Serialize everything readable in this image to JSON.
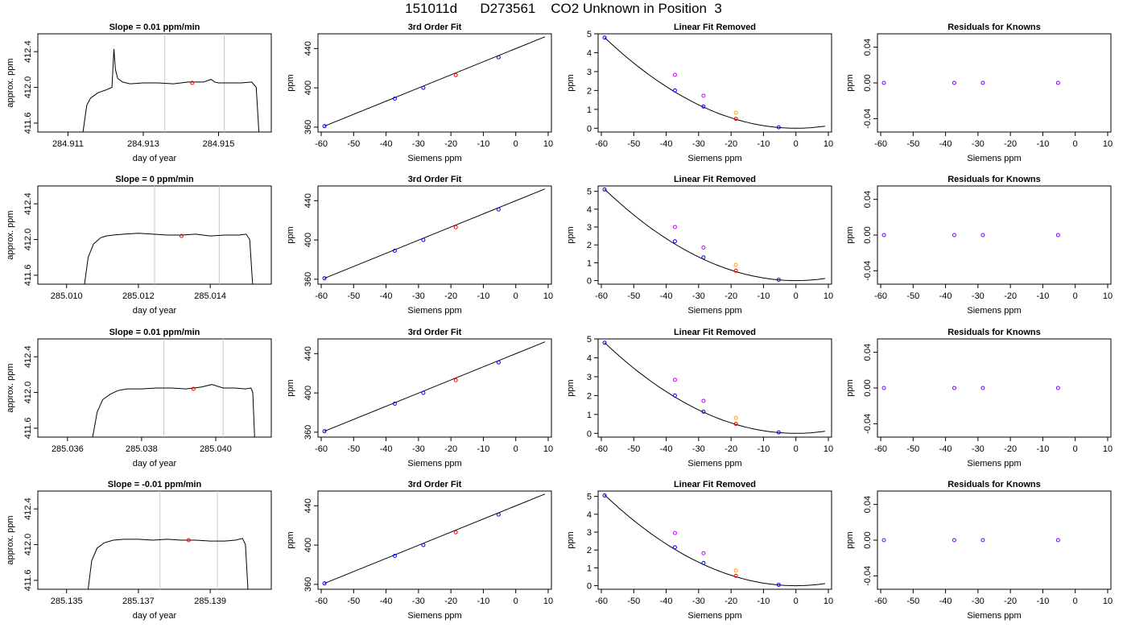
{
  "figure_title": "151011d      D273561    CO2 Unknown in Position  3",
  "colors": {
    "line": "#000000",
    "blue": "#0000ff",
    "red": "#ff0000",
    "magenta": "#cc00ff",
    "orange": "#ffa500",
    "purple": "#6f00ff",
    "gridline": "#c8c8c8"
  },
  "chart_data": [
    {
      "type": "line",
      "row": 0,
      "col": 0,
      "title": "Slope =  0.01  ppm/min",
      "xlabel": "day of year",
      "ylabel": "approx. ppm",
      "xlim": [
        284.9102,
        284.9164
      ],
      "ylim": [
        411.5,
        412.6
      ],
      "xticks": [
        "284.911",
        "284.913",
        "284.915"
      ],
      "yticks": [
        "411.6",
        "412.0",
        "412.4"
      ],
      "vlines": [
        284.91357,
        284.91515
      ],
      "marker": [
        284.9143,
        412.05
      ],
      "x": [
        284.9114,
        284.9115,
        284.9116,
        284.9118,
        284.912,
        284.91217,
        284.91222,
        284.91226,
        284.91232,
        284.91245,
        284.91265,
        284.913,
        284.9134,
        284.9138,
        284.9142,
        284.9146,
        284.9148,
        284.9149,
        284.915,
        284.9153,
        284.9156,
        284.91588,
        284.916,
        284.91607
      ],
      "y": [
        411.5,
        411.8,
        411.88,
        411.94,
        411.97,
        412.0,
        412.43,
        412.2,
        412.1,
        412.06,
        412.04,
        412.05,
        412.05,
        412.04,
        412.06,
        412.06,
        412.09,
        412.06,
        412.05,
        412.05,
        412.05,
        412.06,
        412.0,
        411.5
      ]
    },
    {
      "type": "line",
      "row": 0,
      "col": 1,
      "title": "3rd Order Fit",
      "xlabel": "Siemens ppm",
      "ylabel": "ppm",
      "xlim": [
        -61,
        11
      ],
      "ylim": [
        355,
        455
      ],
      "xticks": [
        "-60",
        "-50",
        "-40",
        "-30",
        "-20",
        "-10",
        "0",
        "10"
      ],
      "yticks": [
        "360",
        "400",
        "440"
      ],
      "fit": {
        "x": [
          -59,
          9
        ],
        "y": [
          361,
          452
        ]
      },
      "points": [
        {
          "x": -59,
          "y": 361,
          "color": "blue"
        },
        {
          "x": -37.3,
          "y": 389,
          "color": "blue"
        },
        {
          "x": -28.5,
          "y": 400,
          "color": "blue"
        },
        {
          "x": -18.5,
          "y": 413,
          "color": "red"
        },
        {
          "x": -5.3,
          "y": 431,
          "color": "blue"
        }
      ]
    },
    {
      "type": "line",
      "row": 0,
      "col": 2,
      "title": "Linear Fit Removed",
      "xlabel": "Siemens ppm",
      "ylabel": "ppm",
      "xlim": [
        -61,
        11
      ],
      "ylim": [
        -0.2,
        5.0
      ],
      "xticks": [
        "-60",
        "-50",
        "-40",
        "-30",
        "-20",
        "-10",
        "0",
        "10"
      ],
      "yticks": [
        "0",
        "1",
        "2",
        "3",
        "4",
        "5"
      ],
      "curve": {
        "a": 0.00138,
        "c": 0.0,
        "x0": -59,
        "x1": 9
      },
      "points": [
        {
          "x": -59,
          "y": 4.8,
          "color": "blue"
        },
        {
          "x": -37.3,
          "y": 2.0,
          "color": "blue"
        },
        {
          "x": -28.5,
          "y": 1.15,
          "color": "blue"
        },
        {
          "x": -18.5,
          "y": 0.5,
          "color": "red"
        },
        {
          "x": -5.3,
          "y": 0.05,
          "color": "blue"
        },
        {
          "x": -37.3,
          "y": 2.83,
          "color": "magenta"
        },
        {
          "x": -28.5,
          "y": 1.72,
          "color": "magenta"
        },
        {
          "x": -18.5,
          "y": 0.82,
          "color": "orange"
        }
      ]
    },
    {
      "type": "scatter",
      "row": 0,
      "col": 3,
      "title": "Residuals for Knowns",
      "xlabel": "Siemens ppm",
      "ylabel": "ppm",
      "xlim": [
        -61,
        11
      ],
      "ylim": [
        -0.055,
        0.055
      ],
      "xticks": [
        "-60",
        "-50",
        "-40",
        "-30",
        "-20",
        "-10",
        "0",
        "10"
      ],
      "yticks": [
        "-0.04",
        "0.00",
        "0.04"
      ],
      "points": [
        {
          "x": -59,
          "y": 0.0,
          "color": "purple"
        },
        {
          "x": -37.3,
          "y": 0.0,
          "color": "purple"
        },
        {
          "x": -28.5,
          "y": 0.0,
          "color": "purple"
        },
        {
          "x": -5.3,
          "y": 0.0,
          "color": "purple"
        }
      ]
    },
    {
      "type": "line",
      "row": 1,
      "col": 0,
      "title": "Slope =  0  ppm/min",
      "xlabel": "day of year",
      "ylabel": "approx. ppm",
      "xlim": [
        285.0092,
        285.0157
      ],
      "ylim": [
        411.5,
        412.6
      ],
      "xticks": [
        "285.010",
        "285.012",
        "285.014"
      ],
      "yticks": [
        "411.6",
        "412.0",
        "412.4"
      ],
      "vlines": [
        285.01245,
        285.01425
      ],
      "marker": [
        285.0132,
        412.04
      ],
      "x": [
        285.0105,
        285.0106,
        285.01075,
        285.01095,
        285.0111,
        285.0113,
        285.0116,
        285.012,
        285.0124,
        285.0128,
        285.0132,
        285.0136,
        285.014,
        285.0144,
        285.0148,
        285.015,
        285.0151,
        285.01518
      ],
      "y": [
        411.5,
        411.8,
        411.95,
        412.02,
        412.04,
        412.05,
        412.06,
        412.07,
        412.06,
        412.05,
        412.05,
        412.06,
        412.04,
        412.05,
        412.05,
        412.06,
        412.0,
        411.5
      ]
    },
    {
      "type": "line",
      "row": 1,
      "col": 1,
      "title": "3rd Order Fit",
      "xlabel": "Siemens ppm",
      "ylabel": "ppm",
      "xlim": [
        -61,
        11
      ],
      "ylim": [
        355,
        455
      ],
      "xticks": [
        "-60",
        "-50",
        "-40",
        "-30",
        "-20",
        "-10",
        "0",
        "10"
      ],
      "yticks": [
        "360",
        "400",
        "440"
      ],
      "fit": {
        "x": [
          -59,
          9
        ],
        "y": [
          361,
          452
        ]
      },
      "points": [
        {
          "x": -59,
          "y": 361,
          "color": "blue"
        },
        {
          "x": -37.3,
          "y": 389,
          "color": "blue"
        },
        {
          "x": -28.5,
          "y": 400,
          "color": "blue"
        },
        {
          "x": -18.5,
          "y": 413,
          "color": "red"
        },
        {
          "x": -5.3,
          "y": 431,
          "color": "blue"
        }
      ]
    },
    {
      "type": "line",
      "row": 1,
      "col": 2,
      "title": "Linear Fit Removed",
      "xlabel": "Siemens ppm",
      "ylabel": "ppm",
      "xlim": [
        -61,
        11
      ],
      "ylim": [
        -0.2,
        5.3
      ],
      "xticks": [
        "-60",
        "-50",
        "-40",
        "-30",
        "-20",
        "-10",
        "0",
        "10"
      ],
      "yticks": [
        "0",
        "1",
        "2",
        "3",
        "4",
        "5"
      ],
      "curve": {
        "a": 0.00147,
        "c": 0.0,
        "x0": -59,
        "x1": 9
      },
      "points": [
        {
          "x": -59,
          "y": 5.1,
          "color": "blue"
        },
        {
          "x": -37.3,
          "y": 2.2,
          "color": "blue"
        },
        {
          "x": -28.5,
          "y": 1.3,
          "color": "blue"
        },
        {
          "x": -18.5,
          "y": 0.55,
          "color": "red"
        },
        {
          "x": -5.3,
          "y": 0.05,
          "color": "blue"
        },
        {
          "x": -37.3,
          "y": 3.0,
          "color": "magenta"
        },
        {
          "x": -28.5,
          "y": 1.85,
          "color": "magenta"
        },
        {
          "x": -18.5,
          "y": 0.88,
          "color": "orange"
        }
      ]
    },
    {
      "type": "scatter",
      "row": 1,
      "col": 3,
      "title": "Residuals for Knowns",
      "xlabel": "Siemens ppm",
      "ylabel": "ppm",
      "xlim": [
        -61,
        11
      ],
      "ylim": [
        -0.055,
        0.055
      ],
      "xticks": [
        "-60",
        "-50",
        "-40",
        "-30",
        "-20",
        "-10",
        "0",
        "10"
      ],
      "yticks": [
        "-0.04",
        "0.00",
        "0.04"
      ],
      "points": [
        {
          "x": -59,
          "y": 0.0,
          "color": "purple"
        },
        {
          "x": -37.3,
          "y": 0.0,
          "color": "purple"
        },
        {
          "x": -28.5,
          "y": 0.0,
          "color": "purple"
        },
        {
          "x": -5.3,
          "y": 0.0,
          "color": "purple"
        }
      ]
    },
    {
      "type": "line",
      "row": 2,
      "col": 0,
      "title": "Slope =  0.01  ppm/min",
      "xlabel": "day of year",
      "ylabel": "approx. ppm",
      "xlim": [
        285.0352,
        285.0415
      ],
      "ylim": [
        411.5,
        412.6
      ],
      "xticks": [
        "285.036",
        "285.038",
        "285.040"
      ],
      "yticks": [
        "411.6",
        "412.0",
        "412.4"
      ],
      "vlines": [
        285.0386,
        285.0402
      ],
      "marker": [
        285.0394,
        412.04
      ],
      "x": [
        285.03668,
        285.0368,
        285.03695,
        285.03715,
        285.03735,
        285.0376,
        285.038,
        285.0384,
        285.0388,
        285.0392,
        285.0396,
        285.0399,
        285.0402,
        285.0405,
        285.0408,
        285.04095,
        285.041,
        285.04105
      ],
      "y": [
        411.5,
        411.78,
        411.92,
        411.98,
        412.02,
        412.04,
        412.04,
        412.05,
        412.05,
        412.04,
        412.06,
        412.09,
        412.05,
        412.05,
        412.04,
        412.05,
        412.0,
        411.5
      ]
    },
    {
      "type": "line",
      "row": 2,
      "col": 1,
      "title": "3rd Order Fit",
      "xlabel": "Siemens ppm",
      "ylabel": "ppm",
      "xlim": [
        -61,
        11
      ],
      "ylim": [
        355,
        455
      ],
      "xticks": [
        "-60",
        "-50",
        "-40",
        "-30",
        "-20",
        "-10",
        "0",
        "10"
      ],
      "yticks": [
        "360",
        "400",
        "440"
      ],
      "fit": {
        "x": [
          -59,
          9
        ],
        "y": [
          361,
          452
        ]
      },
      "points": [
        {
          "x": -59,
          "y": 361,
          "color": "blue"
        },
        {
          "x": -37.3,
          "y": 389,
          "color": "blue"
        },
        {
          "x": -28.5,
          "y": 400,
          "color": "blue"
        },
        {
          "x": -18.5,
          "y": 413,
          "color": "red"
        },
        {
          "x": -5.3,
          "y": 431,
          "color": "blue"
        }
      ]
    },
    {
      "type": "line",
      "row": 2,
      "col": 2,
      "title": "Linear Fit Removed",
      "xlabel": "Siemens ppm",
      "ylabel": "ppm",
      "xlim": [
        -61,
        11
      ],
      "ylim": [
        -0.2,
        5.0
      ],
      "xticks": [
        "-60",
        "-50",
        "-40",
        "-30",
        "-20",
        "-10",
        "0",
        "10"
      ],
      "yticks": [
        "0",
        "1",
        "2",
        "3",
        "4",
        "5"
      ],
      "curve": {
        "a": 0.00138,
        "c": 0.0,
        "x0": -59,
        "x1": 9
      },
      "points": [
        {
          "x": -59,
          "y": 4.8,
          "color": "blue"
        },
        {
          "x": -37.3,
          "y": 2.0,
          "color": "blue"
        },
        {
          "x": -28.5,
          "y": 1.15,
          "color": "blue"
        },
        {
          "x": -18.5,
          "y": 0.5,
          "color": "red"
        },
        {
          "x": -5.3,
          "y": 0.05,
          "color": "blue"
        },
        {
          "x": -37.3,
          "y": 2.83,
          "color": "magenta"
        },
        {
          "x": -28.5,
          "y": 1.72,
          "color": "magenta"
        },
        {
          "x": -18.5,
          "y": 0.82,
          "color": "orange"
        }
      ]
    },
    {
      "type": "scatter",
      "row": 2,
      "col": 3,
      "title": "Residuals for Knowns",
      "xlabel": "Siemens ppm",
      "ylabel": "ppm",
      "xlim": [
        -61,
        11
      ],
      "ylim": [
        -0.055,
        0.055
      ],
      "xticks": [
        "-60",
        "-50",
        "-40",
        "-30",
        "-20",
        "-10",
        "0",
        "10"
      ],
      "yticks": [
        "-0.04",
        "0.00",
        "0.04"
      ],
      "points": [
        {
          "x": -59,
          "y": 0.0,
          "color": "purple"
        },
        {
          "x": -37.3,
          "y": 0.0,
          "color": "purple"
        },
        {
          "x": -28.5,
          "y": 0.0,
          "color": "purple"
        },
        {
          "x": -5.3,
          "y": 0.0,
          "color": "purple"
        }
      ]
    },
    {
      "type": "line",
      "row": 3,
      "col": 0,
      "title": "Slope =  -0.01  ppm/min",
      "xlabel": "day of year",
      "ylabel": "approx. ppm",
      "xlim": [
        285.1342,
        285.1407
      ],
      "ylim": [
        411.5,
        412.6
      ],
      "xticks": [
        "285.135",
        "285.137",
        "285.139"
      ],
      "yticks": [
        "411.6",
        "412.0",
        "412.4"
      ],
      "vlines": [
        285.1376,
        285.1392
      ],
      "marker": [
        285.1384,
        412.05
      ],
      "x": [
        285.1356,
        285.1357,
        285.13585,
        285.13605,
        285.1363,
        285.1366,
        285.137,
        285.1374,
        285.1378,
        285.1382,
        285.1386,
        285.139,
        285.1394,
        285.1397,
        285.1399,
        285.13998,
        285.14005
      ],
      "y": [
        411.5,
        411.82,
        411.96,
        412.02,
        412.05,
        412.06,
        412.06,
        412.05,
        412.06,
        412.05,
        412.05,
        412.04,
        412.04,
        412.05,
        412.07,
        412.0,
        411.5
      ]
    },
    {
      "type": "line",
      "row": 3,
      "col": 1,
      "title": "3rd Order Fit",
      "xlabel": "Siemens ppm",
      "ylabel": "ppm",
      "xlim": [
        -61,
        11
      ],
      "ylim": [
        355,
        455
      ],
      "xticks": [
        "-60",
        "-50",
        "-40",
        "-30",
        "-20",
        "-10",
        "0",
        "10"
      ],
      "yticks": [
        "360",
        "400",
        "440"
      ],
      "fit": {
        "x": [
          -59,
          9
        ],
        "y": [
          361,
          452
        ]
      },
      "points": [
        {
          "x": -59,
          "y": 361,
          "color": "blue"
        },
        {
          "x": -37.3,
          "y": 389,
          "color": "blue"
        },
        {
          "x": -28.5,
          "y": 400,
          "color": "blue"
        },
        {
          "x": -18.5,
          "y": 413,
          "color": "red"
        },
        {
          "x": -5.3,
          "y": 431,
          "color": "blue"
        }
      ]
    },
    {
      "type": "line",
      "row": 3,
      "col": 2,
      "title": "Linear Fit Removed",
      "xlabel": "Siemens ppm",
      "ylabel": "ppm",
      "xlim": [
        -61,
        11
      ],
      "ylim": [
        -0.2,
        5.3
      ],
      "xticks": [
        "-60",
        "-50",
        "-40",
        "-30",
        "-20",
        "-10",
        "0",
        "10"
      ],
      "yticks": [
        "0",
        "1",
        "2",
        "3",
        "4",
        "5"
      ],
      "curve": {
        "a": 0.00146,
        "c": 0.0,
        "x0": -59,
        "x1": 9
      },
      "points": [
        {
          "x": -59,
          "y": 5.05,
          "color": "blue"
        },
        {
          "x": -37.3,
          "y": 2.15,
          "color": "blue"
        },
        {
          "x": -28.5,
          "y": 1.27,
          "color": "blue"
        },
        {
          "x": -18.5,
          "y": 0.55,
          "color": "red"
        },
        {
          "x": -5.3,
          "y": 0.05,
          "color": "blue"
        },
        {
          "x": -37.3,
          "y": 2.95,
          "color": "magenta"
        },
        {
          "x": -28.5,
          "y": 1.82,
          "color": "magenta"
        },
        {
          "x": -18.5,
          "y": 0.85,
          "color": "orange"
        }
      ]
    },
    {
      "type": "scatter",
      "row": 3,
      "col": 3,
      "title": "Residuals for Knowns",
      "xlabel": "Siemens ppm",
      "ylabel": "ppm",
      "xlim": [
        -61,
        11
      ],
      "ylim": [
        -0.055,
        0.055
      ],
      "xticks": [
        "-60",
        "-50",
        "-40",
        "-30",
        "-20",
        "-10",
        "0",
        "10"
      ],
      "yticks": [
        "-0.04",
        "0.00",
        "0.04"
      ],
      "points": [
        {
          "x": -59,
          "y": 0.0,
          "color": "purple"
        },
        {
          "x": -37.3,
          "y": 0.0,
          "color": "purple"
        },
        {
          "x": -28.5,
          "y": 0.0,
          "color": "purple"
        },
        {
          "x": -5.3,
          "y": 0.0,
          "color": "purple"
        }
      ]
    }
  ]
}
